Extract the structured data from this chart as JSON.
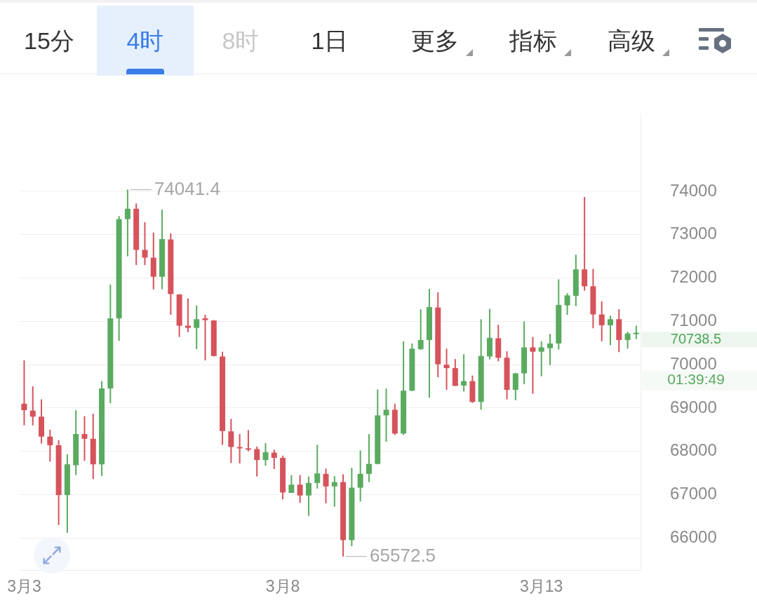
{
  "chart_data": {
    "type": "candlestick",
    "categories": [
      "3月3",
      null,
      null,
      null,
      null,
      null,
      null,
      null,
      null,
      null,
      null,
      null,
      null,
      null,
      null,
      null,
      null,
      null,
      null,
      null,
      null,
      null,
      null,
      null,
      null,
      null,
      null,
      null,
      null,
      null,
      "3月8",
      null,
      null,
      null,
      null,
      null,
      null,
      null,
      null,
      null,
      null,
      null,
      null,
      null,
      null,
      null,
      null,
      null,
      null,
      null,
      null,
      null,
      null,
      null,
      null,
      null,
      null,
      null,
      null,
      null,
      "3月13",
      null,
      null,
      null,
      null,
      null,
      null,
      null,
      null,
      null,
      null,
      null
    ],
    "ohlc": [
      [
        69100,
        70100,
        68600,
        68950
      ],
      [
        68940,
        69500,
        68600,
        68800
      ],
      [
        68800,
        69200,
        68180,
        68340
      ],
      [
        68340,
        68500,
        67760,
        68140
      ],
      [
        68140,
        68260,
        66300,
        66990
      ],
      [
        66990,
        67930,
        66120,
        67700
      ],
      [
        67680,
        68950,
        67450,
        68400
      ],
      [
        68400,
        68810,
        67780,
        68290
      ],
      [
        68290,
        68870,
        67360,
        67700
      ],
      [
        67700,
        69620,
        67430,
        69450
      ],
      [
        69450,
        71850,
        69110,
        71070
      ],
      [
        71070,
        73430,
        70550,
        73360
      ],
      [
        73360,
        74041.4,
        72500,
        73600
      ],
      [
        73600,
        73720,
        72300,
        72650
      ],
      [
        72650,
        73290,
        72300,
        72470
      ],
      [
        72470,
        73050,
        71740,
        72030
      ],
      [
        72030,
        73580,
        71740,
        72900
      ],
      [
        72890,
        73030,
        71150,
        71630
      ],
      [
        71620,
        71630,
        70640,
        70900
      ],
      [
        70900,
        71530,
        70750,
        70850
      ],
      [
        70850,
        71370,
        70360,
        71050
      ],
      [
        71070,
        71150,
        70100,
        71030
      ],
      [
        71020,
        71030,
        70190,
        70200
      ],
      [
        70190,
        70300,
        68150,
        68470
      ],
      [
        68460,
        68750,
        67730,
        68100
      ],
      [
        68100,
        68400,
        67720,
        68070
      ],
      [
        68070,
        68490,
        68000,
        68050
      ],
      [
        68050,
        68110,
        67420,
        67800
      ],
      [
        67800,
        68190,
        67670,
        67980
      ],
      [
        67970,
        68040,
        67590,
        67850
      ],
      [
        67850,
        67900,
        66890,
        67050
      ],
      [
        67040,
        67450,
        67040,
        67230
      ],
      [
        67230,
        67450,
        66810,
        66980
      ],
      [
        66980,
        67420,
        66510,
        67270
      ],
      [
        67270,
        68150,
        67140,
        67490
      ],
      [
        67480,
        67600,
        66800,
        67190
      ],
      [
        67190,
        67430,
        66720,
        67290
      ],
      [
        67290,
        67470,
        65572.5,
        65950
      ],
      [
        65950,
        67620,
        65810,
        67160
      ],
      [
        67160,
        68020,
        66840,
        67480
      ],
      [
        67480,
        68400,
        67290,
        67710
      ],
      [
        67710,
        69430,
        67700,
        68830
      ],
      [
        68830,
        69450,
        68220,
        68960
      ],
      [
        68960,
        69100,
        68380,
        68410
      ],
      [
        68410,
        70540,
        68380,
        69400
      ],
      [
        69400,
        70490,
        69390,
        70370
      ],
      [
        70360,
        71280,
        70340,
        70570
      ],
      [
        70570,
        71750,
        69240,
        71330
      ],
      [
        71320,
        71670,
        69710,
        70010
      ],
      [
        70000,
        70370,
        69420,
        69920
      ],
      [
        69920,
        70130,
        69510,
        69510
      ],
      [
        69520,
        70240,
        69380,
        69620
      ],
      [
        69620,
        69750,
        69120,
        69140
      ],
      [
        69140,
        71050,
        68960,
        70200
      ],
      [
        70190,
        71290,
        70120,
        70620
      ],
      [
        70610,
        70920,
        70080,
        70160
      ],
      [
        70160,
        70310,
        69200,
        69420
      ],
      [
        69420,
        69810,
        69180,
        69800
      ],
      [
        69800,
        71000,
        69550,
        70400
      ],
      [
        70400,
        70640,
        69330,
        70300
      ],
      [
        70300,
        70540,
        69730,
        70400
      ],
      [
        70380,
        70710,
        69990,
        70490
      ],
      [
        70490,
        71970,
        70350,
        71380
      ],
      [
        71370,
        71650,
        71150,
        71600
      ],
      [
        71590,
        72540,
        71350,
        72200
      ],
      [
        72200,
        73870,
        71710,
        71810
      ],
      [
        71810,
        72210,
        70840,
        71160
      ],
      [
        71160,
        71460,
        70540,
        70910
      ],
      [
        70910,
        71130,
        70450,
        71050
      ],
      [
        71050,
        71280,
        70290,
        70570
      ],
      [
        70570,
        70760,
        70370,
        70720
      ],
      [
        70720,
        70900,
        70590,
        70738.5
      ]
    ],
    "colors": [
      "#d6535b",
      "#d6535b",
      "#d6535b",
      "#d6535b",
      "#d6535b",
      "#5aab60",
      "#5aab60",
      "#d6535b",
      "#d6535b",
      "#5aab60",
      "#5aab60",
      "#5aab60",
      "#5aab60",
      "#d6535b",
      "#d6535b",
      "#d6535b",
      "#5aab60",
      "#d6535b",
      "#d6535b",
      "#d6535b",
      "#5aab60",
      "#d6535b",
      "#d6535b",
      "#d6535b",
      "#d6535b",
      "#d6535b",
      "#d6535b",
      "#d6535b",
      "#5aab60",
      "#d6535b",
      "#d6535b",
      "#5aab60",
      "#d6535b",
      "#5aab60",
      "#5aab60",
      "#d6535b",
      "#5aab60",
      "#d6535b",
      "#5aab60",
      "#5aab60",
      "#5aab60",
      "#5aab60",
      "#5aab60",
      "#d6535b",
      "#5aab60",
      "#5aab60",
      "#5aab60",
      "#5aab60",
      "#d6535b",
      "#d6535b",
      "#d6535b",
      "#5aab60",
      "#d6535b",
      "#5aab60",
      "#5aab60",
      "#d6535b",
      "#d6535b",
      "#5aab60",
      "#5aab60",
      "#d6535b",
      "#5aab60",
      "#5aab60",
      "#5aab60",
      "#5aab60",
      "#5aab60",
      "#d6535b",
      "#d6535b",
      "#d6535b",
      "#5aab60",
      "#d6535b",
      "#5aab60",
      "#5aab60"
    ],
    "ylim": [
      65250,
      75790
    ],
    "yticks": [
      66000,
      67000,
      68000,
      69000,
      70000,
      71000,
      72000,
      73000,
      74000
    ],
    "grid": "y",
    "annotations": [
      "15分",
      "4时",
      "8时",
      "1日",
      "更多",
      "指标",
      "高级",
      "74041.4",
      "65572.5",
      "70738.5",
      "01:39:49"
    ]
  }
}
